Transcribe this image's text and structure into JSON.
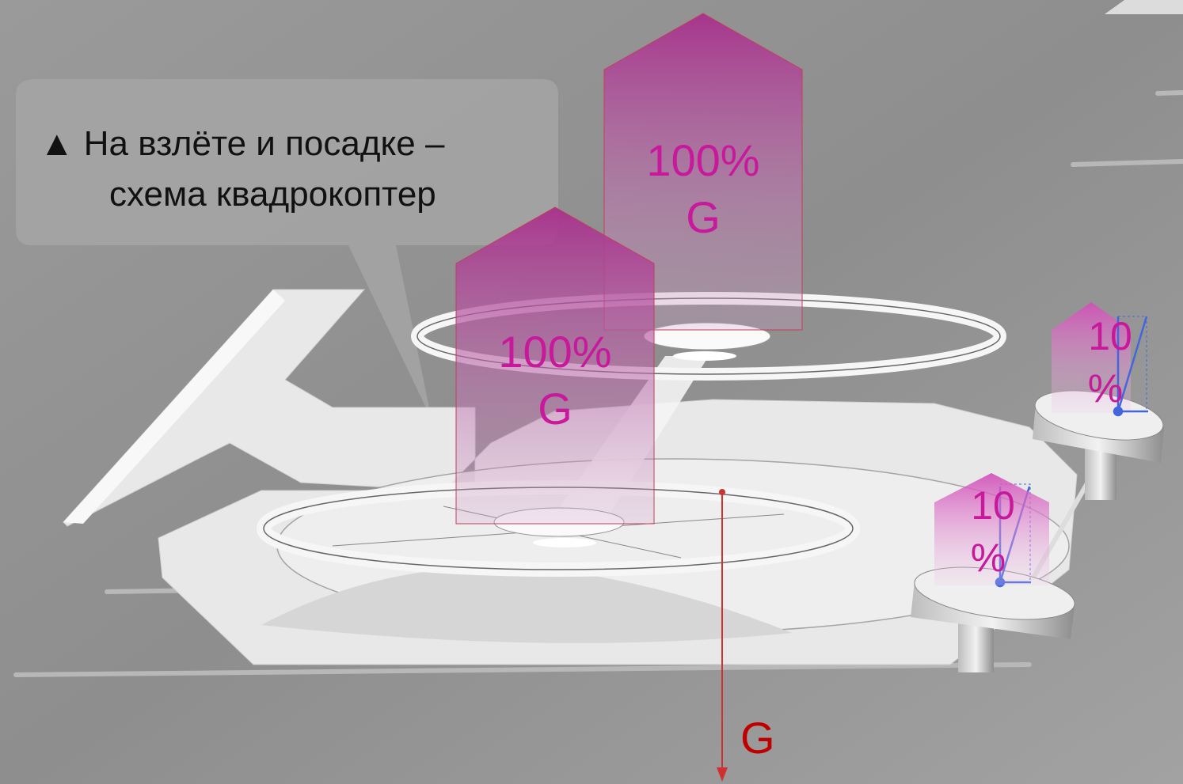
{
  "caption": {
    "lines": [
      "▲ На взлёте и посадке –",
      "схема квадрокоптер"
    ]
  },
  "thrust_arrows": [
    {
      "value": "100%",
      "unit": "G"
    },
    {
      "value": "100%",
      "unit": "G"
    },
    {
      "value": "10",
      "unit": "%"
    },
    {
      "value": "10",
      "unit": "%"
    }
  ],
  "weight": {
    "label": "G"
  }
}
